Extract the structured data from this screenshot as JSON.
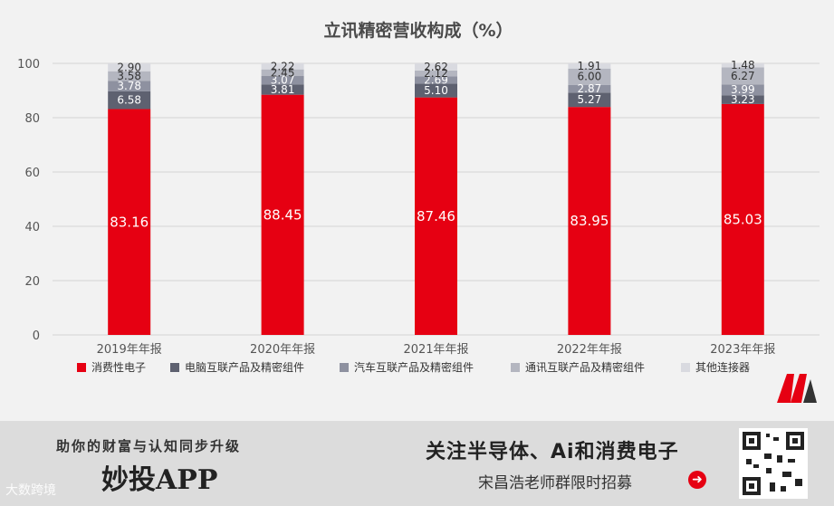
{
  "chart_data": {
    "type": "bar",
    "stacked": true,
    "title": "立讯精密营收构成（%）",
    "categories": [
      "2019年年报",
      "2020年年报",
      "2021年年报",
      "2022年年报",
      "2023年年报"
    ],
    "ylim": [
      0,
      100
    ],
    "yticks": [
      0,
      20,
      40,
      60,
      80,
      100
    ],
    "grid": true,
    "legend_position": "bottom",
    "series": [
      {
        "name": "消费性电子",
        "color": "#e60012",
        "values": [
          83.16,
          88.45,
          87.46,
          83.95,
          85.03
        ]
      },
      {
        "name": "电脑互联产品及精密组件",
        "color": "#5e6170",
        "values": [
          6.58,
          3.81,
          5.1,
          5.27,
          3.23
        ]
      },
      {
        "name": "汽车互联产品及精密组件",
        "color": "#8e91a0",
        "values": [
          3.78,
          3.07,
          2.69,
          2.87,
          3.99
        ]
      },
      {
        "name": "通讯互联产品及精密组件",
        "color": "#b4b6c0",
        "values": [
          3.58,
          2.45,
          2.12,
          6.0,
          6.27
        ]
      },
      {
        "name": "其他连接器",
        "color": "#d9dae0",
        "values": [
          2.9,
          2.22,
          2.62,
          1.91,
          1.48
        ]
      }
    ]
  },
  "footer": {
    "slogan": "助你的财富与认知同步升级",
    "app_name": "妙投APP",
    "watermark": "大数跨境",
    "promo_line1": "关注半导体、Ai和消费电子",
    "promo_line2": "宋昌浩老师群限时招募",
    "arrow_icon": "➜",
    "logo": "M"
  }
}
